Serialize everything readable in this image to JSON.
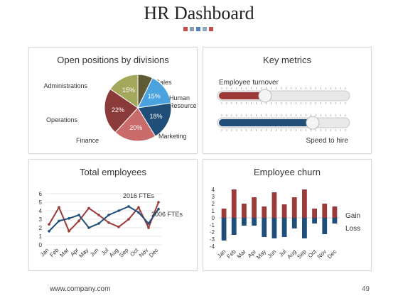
{
  "header": {
    "title": "HR Dashboard",
    "squares": [
      "#c0504d",
      "#8c9bb0",
      "#4f81bd",
      "#8caac4",
      "#c0504d"
    ]
  },
  "panels": {
    "open_positions_title": "Open positions by divisions",
    "key_metrics_title": "Key metrics",
    "total_employees_title": "Total employees",
    "employee_churn_title": "Employee churn"
  },
  "key_metrics": {
    "turnover_label": "Employee turnover",
    "turnover_value": 0.36,
    "hire_label": "Speed to hire",
    "hire_value": 0.72,
    "colors": {
      "turnover": "#9b3a39",
      "hire": "#1f4e79"
    }
  },
  "footer": {
    "url": "www.company.com",
    "page": "49"
  },
  "chart_data": [
    {
      "type": "pie",
      "title": "Open positions by divisions",
      "slices": [
        {
          "label": "Sales",
          "value": 7,
          "display": "",
          "color": "#5e5a35"
        },
        {
          "label": "Human Resource",
          "value": 15,
          "display": "15%",
          "color": "#4aa3df"
        },
        {
          "label": "Marketing",
          "value": 18,
          "display": "18%",
          "color": "#1f4e79"
        },
        {
          "label": "Finance",
          "value": 20,
          "display": "20%",
          "color": "#c96b6b"
        },
        {
          "label": "Operations",
          "value": 22,
          "display": "22%",
          "color": "#8b3a3a"
        },
        {
          "label": "Administrations",
          "value": 15,
          "display": "15%",
          "color": "#a3a85c"
        }
      ]
    },
    {
      "type": "line",
      "title": "Total employees",
      "categories": [
        "Jan",
        "Feb",
        "Mar",
        "Apr",
        "May",
        "Jun",
        "Jul",
        "Aug",
        "Sep",
        "Oct",
        "Nov",
        "Dec"
      ],
      "ylim": [
        0,
        6
      ],
      "yticks": [
        0,
        1,
        2,
        3,
        4,
        5,
        6
      ],
      "series": [
        {
          "name": "2016 FTEs",
          "color": "#9b3a39",
          "values": [
            2.4,
            4.4,
            1.6,
            2.8,
            4.3,
            3.5,
            2.6,
            2.1,
            3.0,
            4.4,
            2.0,
            5.0
          ]
        },
        {
          "name": "2006 FTEs",
          "color": "#1f4e79",
          "values": [
            1.6,
            2.8,
            3.1,
            3.5,
            2.0,
            2.5,
            3.5,
            4.0,
            4.5,
            3.8,
            2.5,
            4.2
          ]
        }
      ]
    },
    {
      "type": "bar",
      "title": "Employee churn",
      "categories": [
        "Jan",
        "Feb",
        "Mar",
        "Apr",
        "May",
        "Jun",
        "Jul",
        "Aug",
        "Sep",
        "Oct",
        "Nov",
        "Dec"
      ],
      "ylim": [
        -4,
        4
      ],
      "yticks": [
        4,
        3,
        2,
        1,
        0,
        -1,
        -2,
        -3,
        -4
      ],
      "series": [
        {
          "name": "Gain",
          "color": "#9b3a39",
          "values": [
            1.3,
            4.0,
            2.0,
            2.9,
            1.6,
            3.6,
            1.9,
            2.9,
            4.0,
            1.3,
            2.0,
            1.6
          ]
        },
        {
          "name": "Loss",
          "color": "#1f4e79",
          "values": [
            -3.2,
            -2.4,
            -1.1,
            -1.1,
            -2.7,
            -2.9,
            -2.7,
            -1.5,
            -2.9,
            -0.8,
            -2.3,
            -0.8
          ]
        }
      ]
    }
  ]
}
